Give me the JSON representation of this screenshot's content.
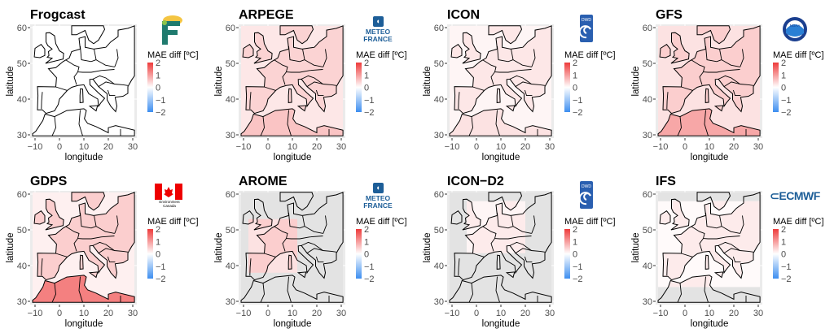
{
  "chart_data": {
    "type": "heatmap",
    "layout": "2x4 grid of map panels",
    "xlabel": "longitude",
    "ylabel": "latitude",
    "xlim": [
      -10,
      30
    ],
    "ylim": [
      30,
      60
    ],
    "xticks": [
      -10,
      0,
      10,
      20,
      30
    ],
    "yticks": [
      30,
      40,
      50,
      60
    ],
    "grid": true,
    "legend": {
      "title": "MAE diff [ºC]",
      "ticks": [
        2,
        1,
        0,
        -1,
        -2
      ],
      "range": [
        -2,
        2
      ],
      "colors": {
        "high": "#EE3B3B",
        "mid": "#FFFFFF",
        "low": "#3D8EF0"
      },
      "placement": "right"
    },
    "mask_color": "#E3E3E3",
    "panels": [
      {
        "title": "Frogcast",
        "logo": "frogcast-logo",
        "logo_text": "F",
        "approx_diff": {
          "sea": 0.0,
          "land": 0.0,
          "africa": 0.0
        },
        "domain": null
      },
      {
        "title": "ARPEGE",
        "logo": "meteo-france-logo",
        "logo_text": "METEO FRANCE",
        "approx_diff": {
          "sea": 0.25,
          "land": 0.45,
          "africa": 0.6
        },
        "domain": null
      },
      {
        "title": "ICON",
        "logo": "dwd-logo",
        "logo_text": "DWD",
        "approx_diff": {
          "sea": 0.1,
          "land": 0.25,
          "africa": 0.3
        },
        "domain": null
      },
      {
        "title": "GFS",
        "logo": "noaa-logo",
        "logo_text": "NOAA",
        "approx_diff": {
          "sea": 0.3,
          "land": 0.5,
          "africa": 0.9
        },
        "domain": null
      },
      {
        "title": "GDPS",
        "logo": "environment-canada-logo",
        "logo_text": "Environment Canada",
        "approx_diff": {
          "sea": 0.15,
          "land": 0.5,
          "africa": 1.3
        },
        "domain": null
      },
      {
        "title": "AROME",
        "logo": "meteo-france-logo",
        "logo_text": "METEO FRANCE",
        "approx_diff": {
          "sea": 0.3,
          "land": 0.5,
          "africa": 0.5
        },
        "domain": {
          "lon": [
            -8,
            12
          ],
          "lat": [
            38,
            53
          ]
        }
      },
      {
        "title": "ICON−D2",
        "logo": "dwd-logo",
        "logo_text": "DWD",
        "approx_diff": {
          "sea": 0.1,
          "land": 0.2,
          "africa": 0.2
        },
        "domain": {
          "lon": [
            -4,
            20
          ],
          "lat": [
            43.5,
            58
          ]
        }
      },
      {
        "title": "IFS",
        "logo": "ecmwf-logo",
        "logo_text": "ECMWF",
        "approx_diff": {
          "sea": 0.05,
          "land": 0.2,
          "africa": 0.2
        },
        "domain": {
          "lon": [
            -11,
            31
          ],
          "lat": [
            34,
            58
          ]
        }
      }
    ]
  }
}
